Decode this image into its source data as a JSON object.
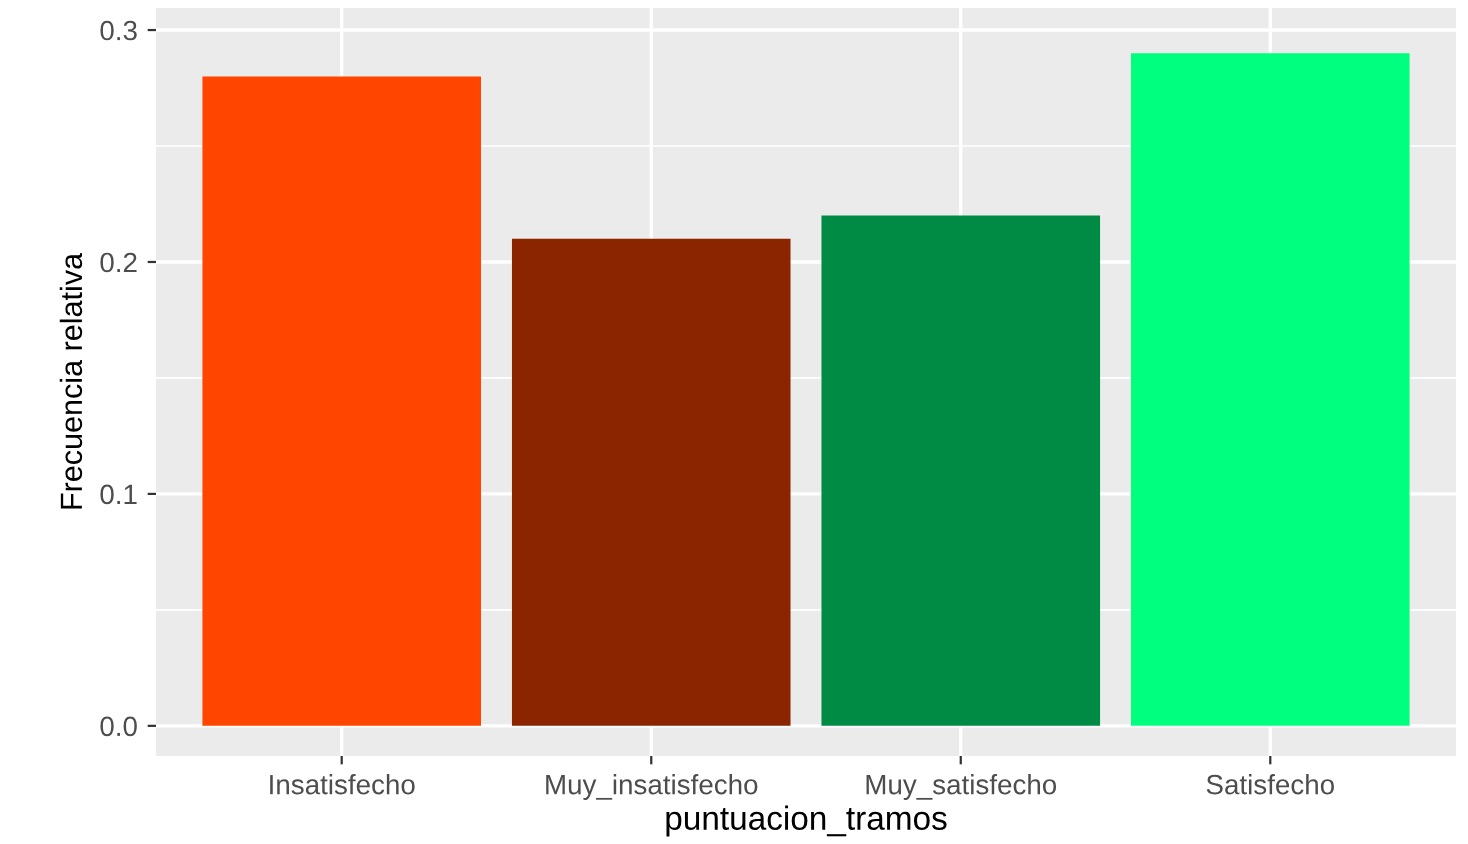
{
  "chart_data": {
    "type": "bar",
    "xlabel": "puntuacion_tramos",
    "ylabel": "Frecuencia relativa",
    "categories": [
      "Insatisfecho",
      "Muy_insatisfecho",
      "Muy_satisfecho",
      "Satisfecho"
    ],
    "values": [
      0.28,
      0.21,
      0.22,
      0.29
    ],
    "colors": [
      "#ff4500",
      "#8b2500",
      "#008b45",
      "#00ff7f"
    ],
    "ylim": [
      -0.013,
      0.3095
    ],
    "yticks": [
      {
        "value": 0,
        "label": "0.0"
      },
      {
        "value": 0.1,
        "label": "0.1"
      },
      {
        "value": 0.2,
        "label": "0.2"
      },
      {
        "value": 0.3,
        "label": "0.3"
      }
    ],
    "grid": true,
    "legend": false
  }
}
